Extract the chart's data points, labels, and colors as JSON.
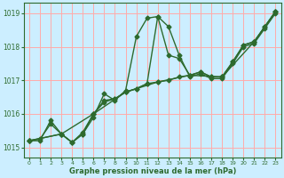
{
  "xlabel": "Graphe pression niveau de la mer (hPa)",
  "ylabel": "",
  "bg_color": "#cceeff",
  "grid_color": "#ffaaaa",
  "line_color": "#2d6a2d",
  "xlim": [
    -0.5,
    23.5
  ],
  "ylim": [
    1014.7,
    1019.3
  ],
  "yticks": [
    1015,
    1016,
    1017,
    1018,
    1019
  ],
  "xticks": [
    0,
    1,
    2,
    3,
    4,
    5,
    6,
    7,
    8,
    9,
    10,
    11,
    12,
    13,
    14,
    15,
    16,
    17,
    18,
    19,
    20,
    21,
    22,
    23
  ],
  "lines": [
    {
      "x": [
        0,
        1,
        2,
        3,
        4,
        5,
        6,
        7,
        8,
        9,
        10,
        11,
        12,
        13,
        14,
        15,
        16,
        17,
        18,
        19,
        20,
        21,
        22,
        23
      ],
      "y": [
        1015.2,
        1015.2,
        1015.8,
        1015.4,
        1015.15,
        1015.4,
        1015.9,
        1016.6,
        1016.4,
        1016.7,
        1018.3,
        1018.85,
        1018.9,
        1018.6,
        1017.75,
        1017.1,
        1017.2,
        1017.05,
        1017.05,
        1017.5,
        1018.0,
        1018.1,
        1018.55,
        1019.0
      ]
    },
    {
      "x": [
        0,
        1,
        2,
        3,
        4,
        5,
        6,
        7,
        8,
        9,
        10,
        11,
        12,
        13,
        14,
        15,
        16,
        17,
        18,
        19,
        20,
        21,
        22,
        23
      ],
      "y": [
        1015.2,
        1015.25,
        1015.7,
        1015.4,
        1015.15,
        1015.45,
        1016.0,
        1016.35,
        1016.45,
        1016.65,
        1016.75,
        1016.9,
        1016.95,
        1017.0,
        1017.1,
        1017.15,
        1017.25,
        1017.1,
        1017.1,
        1017.55,
        1018.05,
        1018.15,
        1018.6,
        1019.05
      ]
    },
    {
      "x": [
        0,
        3,
        4,
        5,
        6,
        7,
        8,
        9,
        10,
        11,
        12,
        13,
        14,
        15,
        16,
        17,
        18,
        19,
        20,
        21,
        22,
        23
      ],
      "y": [
        1015.2,
        1015.4,
        1015.15,
        1015.4,
        1016.0,
        1016.4,
        1016.45,
        1016.65,
        1016.75,
        1016.9,
        1018.9,
        1017.75,
        1017.65,
        1017.15,
        1017.25,
        1017.1,
        1017.1,
        1017.55,
        1018.05,
        1018.15,
        1018.6,
        1019.05
      ]
    },
    {
      "x": [
        0,
        3,
        6,
        9,
        12,
        15,
        18,
        21,
        23
      ],
      "y": [
        1015.2,
        1015.4,
        1016.0,
        1016.65,
        1016.95,
        1017.15,
        1017.1,
        1018.15,
        1019.05
      ]
    }
  ],
  "marker": "D",
  "markersize": 2.5,
  "linewidth": 1.0
}
